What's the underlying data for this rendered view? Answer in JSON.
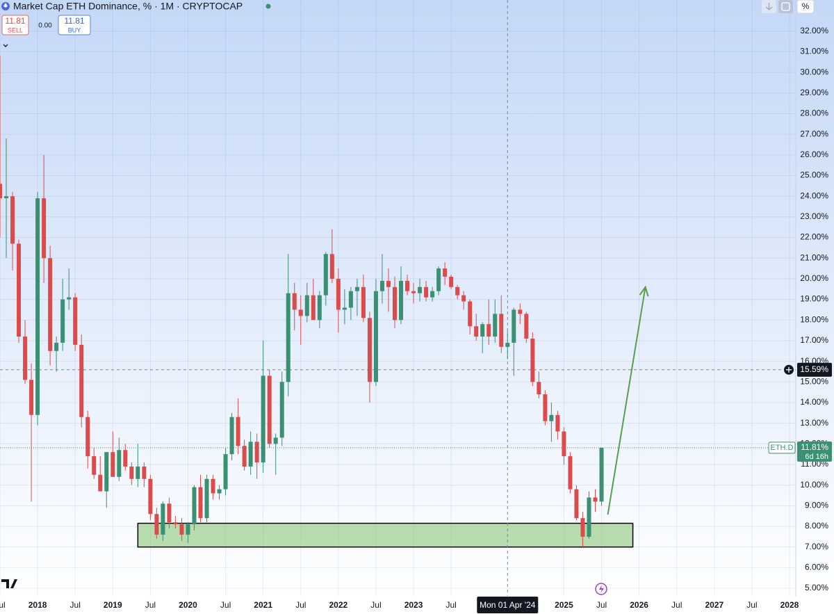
{
  "header": {
    "title": "Market Cap ETH Dominance, % · 1M · CRYPTOCAP",
    "sell_price": "11.81",
    "sell_label": "SELL",
    "spread": "0.00",
    "buy_price": "11.81",
    "buy_label": "BUY",
    "scale_mode": "%"
  },
  "chart_data": {
    "type": "candlestick",
    "x": [
      "2017-07",
      "2017-08",
      "2017-09",
      "2017-10",
      "2017-11",
      "2017-12",
      "2018-01",
      "2018-02",
      "2018-03",
      "2018-04",
      "2018-05",
      "2018-06",
      "2018-07",
      "2018-08",
      "2018-09",
      "2018-10",
      "2018-11",
      "2018-12",
      "2019-01",
      "2019-02",
      "2019-03",
      "2019-04",
      "2019-05",
      "2019-06",
      "2019-07",
      "2019-08",
      "2019-09",
      "2019-10",
      "2019-11",
      "2019-12",
      "2020-01",
      "2020-02",
      "2020-03",
      "2020-04",
      "2020-05",
      "2020-06",
      "2020-07",
      "2020-08",
      "2020-09",
      "2020-10",
      "2020-11",
      "2020-12",
      "2021-01",
      "2021-02",
      "2021-03",
      "2021-04",
      "2021-05",
      "2021-06",
      "2021-07",
      "2021-08",
      "2021-09",
      "2021-10",
      "2021-11",
      "2021-12",
      "2022-01",
      "2022-02",
      "2022-03",
      "2022-04",
      "2022-05",
      "2022-06",
      "2022-07",
      "2022-08",
      "2022-09",
      "2022-10",
      "2022-11",
      "2022-12",
      "2023-01",
      "2023-02",
      "2023-03",
      "2023-04",
      "2023-05",
      "2023-06",
      "2023-07",
      "2023-08",
      "2023-09",
      "2023-10",
      "2023-11",
      "2023-12",
      "2024-01",
      "2024-02",
      "2024-03",
      "2024-04",
      "2024-05",
      "2024-06",
      "2024-07",
      "2024-08",
      "2024-09",
      "2024-10",
      "2024-11",
      "2024-12",
      "2025-01",
      "2025-02",
      "2025-03",
      "2025-04",
      "2025-05",
      "2025-06",
      "2025-07"
    ],
    "open": [
      24.6,
      23.9,
      24.0,
      21.7,
      17.2,
      15.1,
      13.4,
      23.9,
      21.0,
      16.5,
      16.9,
      19.0,
      19.1,
      16.8,
      13.3,
      11.4,
      10.5,
      9.7,
      11.6,
      10.4,
      11.7,
      10.9,
      10.3,
      10.9,
      10.3,
      8.6,
      7.6,
      9.1,
      8.2,
      8.1,
      7.6,
      8.1,
      9.9,
      8.4,
      10.3,
      9.6,
      9.8,
      11.5,
      13.3,
      11.9,
      10.9,
      12.1,
      11.1,
      15.3,
      12.0,
      12.3,
      15.0,
      19.3,
      18.5,
      18.2,
      19.2,
      18.0,
      19.2,
      21.2,
      20.0,
      18.5,
      18.6,
      19.4,
      19.6,
      18.1,
      15.0,
      19.4,
      19.9,
      19.6,
      18.0,
      19.9,
      19.4,
      19.3,
      19.6,
      19.1,
      19.4,
      20.5,
      20.1,
      19.6,
      19.2,
      18.9,
      17.7,
      17.2,
      17.8,
      17.2,
      18.3,
      16.7,
      16.9,
      18.5,
      18.3,
      17.1,
      15.0,
      14.4,
      13.1,
      13.4,
      12.6,
      11.4,
      9.8,
      8.4,
      7.5,
      9.4,
      9.2
    ],
    "high": [
      30.8,
      26.8,
      24.2,
      21.9,
      18.0,
      15.9,
      24.2,
      26.0,
      21.6,
      17.2,
      20.0,
      20.5,
      19.3,
      17.3,
      13.6,
      11.8,
      11.4,
      11.6,
      12.6,
      12.3,
      12.0,
      11.1,
      12.0,
      11.1,
      10.5,
      8.9,
      9.2,
      9.4,
      8.5,
      8.4,
      8.2,
      10.0,
      10.5,
      10.5,
      10.5,
      10.0,
      11.8,
      13.5,
      14.2,
      12.2,
      12.6,
      12.5,
      17.0,
      15.6,
      12.5,
      15.5,
      21.2,
      19.8,
      19.2,
      19.8,
      20.0,
      19.4,
      21.3,
      22.4,
      20.5,
      19.5,
      19.6,
      20.0,
      20.2,
      18.4,
      20.0,
      21.2,
      20.5,
      20.1,
      20.6,
      20.2,
      19.8,
      20.0,
      19.9,
      19.6,
      20.6,
      20.8,
      20.2,
      19.7,
      19.4,
      19.0,
      18.3,
      17.9,
      19.0,
      19.0,
      19.2,
      17.5,
      18.6,
      18.8,
      18.4,
      17.4,
      15.5,
      14.6,
      14.0,
      13.6,
      12.8,
      11.6,
      10.0,
      8.7,
      9.7,
      9.8,
      11.81
    ],
    "low": [
      22.0,
      21.0,
      20.4,
      16.9,
      14.9,
      9.2,
      12.9,
      19.8,
      15.8,
      15.5,
      16.5,
      18.5,
      16.5,
      12.8,
      10.8,
      10.3,
      9.7,
      8.9,
      10.4,
      10.2,
      10.7,
      10.0,
      9.9,
      9.9,
      8.3,
      7.4,
      7.3,
      7.9,
      7.9,
      7.3,
      7.2,
      7.8,
      8.2,
      8.2,
      9.3,
      9.3,
      9.5,
      11.2,
      11.5,
      10.7,
      10.5,
      10.3,
      10.6,
      11.8,
      10.5,
      11.9,
      14.3,
      17.5,
      16.8,
      17.9,
      18.0,
      17.6,
      18.7,
      19.8,
      17.4,
      17.8,
      18.0,
      18.2,
      17.9,
      14.0,
      14.8,
      18.8,
      18.4,
      17.6,
      17.8,
      19.2,
      18.8,
      18.9,
      18.9,
      18.9,
      19.2,
      19.7,
      19.5,
      19.0,
      18.5,
      17.3,
      17.0,
      16.4,
      16.8,
      16.9,
      16.4,
      16.1,
      15.3,
      17.8,
      16.9,
      14.8,
      14.2,
      12.9,
      12.1,
      12.2,
      11.0,
      9.6,
      8.3,
      7.0,
      7.4,
      8.7,
      9.0
    ],
    "close": [
      23.9,
      24.0,
      21.7,
      17.2,
      15.1,
      13.4,
      23.9,
      21.0,
      16.5,
      16.9,
      19.0,
      19.1,
      16.8,
      13.3,
      11.4,
      10.5,
      9.7,
      11.6,
      10.4,
      11.7,
      10.9,
      10.3,
      10.9,
      10.3,
      8.6,
      7.6,
      9.1,
      8.2,
      8.1,
      7.6,
      8.1,
      9.9,
      8.4,
      10.3,
      9.6,
      9.8,
      11.5,
      13.3,
      11.9,
      10.9,
      12.1,
      11.1,
      15.3,
      12.0,
      12.3,
      15.0,
      19.3,
      18.5,
      18.2,
      19.2,
      18.0,
      19.2,
      21.2,
      20.0,
      18.5,
      18.6,
      19.4,
      19.6,
      18.1,
      15.0,
      19.4,
      19.9,
      19.6,
      18.0,
      19.9,
      19.4,
      19.3,
      19.6,
      19.1,
      19.4,
      20.5,
      20.1,
      19.6,
      19.2,
      18.9,
      17.7,
      17.2,
      17.8,
      17.2,
      18.3,
      16.7,
      16.9,
      18.5,
      18.3,
      17.1,
      15.0,
      14.4,
      13.1,
      13.4,
      12.6,
      11.4,
      9.8,
      8.4,
      7.5,
      9.4,
      9.2,
      11.81
    ],
    "up_color": "#3b8f72",
    "down_color": "#dc4b4b",
    "xlim": [
      "2017-07",
      "2028-02"
    ],
    "xticks": [
      {
        "value": "2017-07",
        "label": "Jul"
      },
      {
        "value": "2018-01",
        "label": "2018"
      },
      {
        "value": "2018-07",
        "label": "Jul"
      },
      {
        "value": "2019-01",
        "label": "2019"
      },
      {
        "value": "2019-07",
        "label": "Jul"
      },
      {
        "value": "2020-01",
        "label": "2020"
      },
      {
        "value": "2020-07",
        "label": "Jul"
      },
      {
        "value": "2021-01",
        "label": "2021"
      },
      {
        "value": "2021-07",
        "label": "Jul"
      },
      {
        "value": "2022-01",
        "label": "2022"
      },
      {
        "value": "2022-07",
        "label": "Jul"
      },
      {
        "value": "2023-01",
        "label": "2023"
      },
      {
        "value": "2023-07",
        "label": "Jul"
      },
      {
        "value": "2025-01",
        "label": "2025"
      },
      {
        "value": "2025-07",
        "label": "Jul"
      },
      {
        "value": "2026-01",
        "label": "2026"
      },
      {
        "value": "2026-07",
        "label": "Jul"
      },
      {
        "value": "2027-01",
        "label": "2027"
      },
      {
        "value": "2027-07",
        "label": "Jul"
      },
      {
        "value": "2028-01",
        "label": "2028"
      }
    ],
    "ylim": [
      4.63,
      33.51
    ],
    "yticks": [
      {
        "value": 5,
        "label": "5.00%"
      },
      {
        "value": 6,
        "label": "6.00%"
      },
      {
        "value": 7,
        "label": "7.00%"
      },
      {
        "value": 8,
        "label": "8.00%"
      },
      {
        "value": 9,
        "label": "9.00%"
      },
      {
        "value": 10,
        "label": "10.00%"
      },
      {
        "value": 11,
        "label": "11.00%"
      },
      {
        "value": 12,
        "label": "12.00%"
      },
      {
        "value": 13,
        "label": "13.00%"
      },
      {
        "value": 14,
        "label": "14.00%"
      },
      {
        "value": 15,
        "label": "15.00%"
      },
      {
        "value": 16,
        "label": "16.00%"
      },
      {
        "value": 17,
        "label": "17.00%"
      },
      {
        "value": 18,
        "label": "18.00%"
      },
      {
        "value": 19,
        "label": "19.00%"
      },
      {
        "value": 20,
        "label": "20.00%"
      },
      {
        "value": 21,
        "label": "21.00%"
      },
      {
        "value": 22,
        "label": "22.00%"
      },
      {
        "value": 23,
        "label": "23.00%"
      },
      {
        "value": 24,
        "label": "24.00%"
      },
      {
        "value": 25,
        "label": "25.00%"
      },
      {
        "value": 26,
        "label": "26.00%"
      },
      {
        "value": 27,
        "label": "27.00%"
      },
      {
        "value": 28,
        "label": "28.00%"
      },
      {
        "value": 29,
        "label": "29.00%"
      },
      {
        "value": 30,
        "label": "30.00%"
      },
      {
        "value": 31,
        "label": "31.00%"
      },
      {
        "value": 32,
        "label": "32.00%"
      }
    ],
    "grid": true,
    "crosshair": {
      "x": "2024-04",
      "x_label": "Mon 01 Apr '24",
      "y": 15.59,
      "y_label": "15.59%"
    },
    "last_price": {
      "name": "ETH.D",
      "value": 11.81,
      "label": "11.81%",
      "countdown": "6d 16h"
    },
    "zone": {
      "x": [
        "2019-05",
        "2025-12"
      ],
      "y": [
        7.0,
        8.15
      ]
    },
    "arrow": {
      "x": [
        "2025-08",
        "2026-02"
      ],
      "y": [
        8.57,
        19.6
      ]
    }
  }
}
